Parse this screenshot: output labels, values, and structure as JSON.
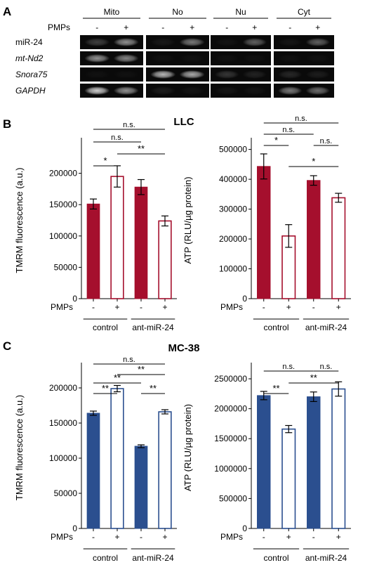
{
  "panel_a": {
    "letter": "A",
    "fractions": [
      "Mito",
      "No",
      "Nu",
      "Cyt"
    ],
    "pmps_label": "PMPs",
    "pmps_signs": [
      "-",
      "+"
    ],
    "rows": [
      {
        "label": "miR-24",
        "italic": false
      },
      {
        "label": "mt-Nd2",
        "italic": true
      },
      {
        "label": "Snora75",
        "italic": true
      },
      {
        "label": "GAPDH",
        "italic": true
      }
    ],
    "band_intensity": [
      [
        [
          0.22,
          0.55
        ],
        [
          0.06,
          0.45
        ],
        [
          0.04,
          0.35
        ],
        [
          0.05,
          0.35
        ]
      ],
      [
        [
          0.55,
          0.5
        ],
        [
          0.03,
          0.03
        ],
        [
          0.03,
          0.03
        ],
        [
          0.03,
          0.03
        ]
      ],
      [
        [
          0.03,
          0.03
        ],
        [
          0.7,
          0.65
        ],
        [
          0.18,
          0.1
        ],
        [
          0.12,
          0.08
        ]
      ],
      [
        [
          0.8,
          0.55
        ],
        [
          0.08,
          0.04
        ],
        [
          0.05,
          0.04
        ],
        [
          0.45,
          0.4
        ]
      ]
    ]
  },
  "panel_b": {
    "letter": "B",
    "title": "LLC"
  },
  "panel_c": {
    "letter": "C",
    "title": "MC-38"
  },
  "colors": {
    "llc": "#a50f2d",
    "mc38": "#2b4f8f",
    "axis": "#000000"
  },
  "chart_data": [
    {
      "type": "bar",
      "panel": "B-left",
      "ylabel": "TMRM fluorescence (a.u.)",
      "ylim": [
        0,
        250000
      ],
      "yticks": [
        0,
        50000,
        100000,
        150000,
        200000
      ],
      "ytick_labels": [
        "0",
        "50000",
        "100000",
        "150000",
        "200000"
      ],
      "pmps_label": "PMPs",
      "pmps": [
        "-",
        "+",
        "-",
        "+"
      ],
      "groups": [
        "control",
        "ant-miR-24"
      ],
      "values": [
        151000,
        195000,
        178000,
        124000
      ],
      "errors": [
        8000,
        17000,
        12000,
        8000
      ],
      "filled": [
        true,
        false,
        true,
        false
      ],
      "significance": [
        {
          "pair": [
            0,
            1
          ],
          "label": "*"
        },
        {
          "pair": [
            1,
            3
          ],
          "label": "**"
        },
        {
          "pair": [
            0,
            2
          ],
          "label": "n.s."
        },
        {
          "pair": [
            0,
            3
          ],
          "label": "n.s."
        }
      ]
    },
    {
      "type": "bar",
      "panel": "B-right",
      "ylabel": "ATP (RLU/µg protein)",
      "ylim": [
        0,
        525000
      ],
      "yticks": [
        0,
        100000,
        200000,
        300000,
        400000,
        500000
      ],
      "ytick_labels": [
        "0",
        "100000",
        "200000",
        "300000",
        "400000",
        "500000"
      ],
      "pmps_label": "PMPs",
      "pmps": [
        "-",
        "+",
        "-",
        "+"
      ],
      "groups": [
        "control",
        "ant-miR-24"
      ],
      "values": [
        443000,
        210000,
        396000,
        338000
      ],
      "errors": [
        42000,
        38000,
        16000,
        15000
      ],
      "filled": [
        true,
        false,
        true,
        false
      ],
      "significance": [
        {
          "pair": [
            0,
            1
          ],
          "label": "*"
        },
        {
          "pair": [
            1,
            3
          ],
          "label": "*"
        },
        {
          "pair": [
            2,
            3
          ],
          "label": "n.s."
        },
        {
          "pair": [
            0,
            2
          ],
          "label": "n.s."
        },
        {
          "pair": [
            0,
            3
          ],
          "label": "n.s."
        }
      ]
    },
    {
      "type": "bar",
      "panel": "C-left",
      "ylabel": "TMRM fluorescence (a.u.)",
      "ylim": [
        0,
        230000
      ],
      "yticks": [
        0,
        50000,
        100000,
        150000,
        200000
      ],
      "ytick_labels": [
        "0",
        "50000",
        "100000",
        "150000",
        "200000"
      ],
      "pmps_label": "PMPs",
      "pmps": [
        "-",
        "+",
        "-",
        "+"
      ],
      "groups": [
        "control",
        "ant-miR-24"
      ],
      "values": [
        164000,
        199000,
        117000,
        166000
      ],
      "errors": [
        3000,
        4500,
        2000,
        3000
      ],
      "filled": [
        true,
        false,
        true,
        false
      ],
      "significance": [
        {
          "pair": [
            0,
            1
          ],
          "label": "**"
        },
        {
          "pair": [
            2,
            3
          ],
          "label": "**"
        },
        {
          "pair": [
            0,
            2
          ],
          "label": "**"
        },
        {
          "pair": [
            1,
            3
          ],
          "label": "**"
        },
        {
          "pair": [
            0,
            3
          ],
          "label": "n.s."
        }
      ]
    },
    {
      "type": "bar",
      "panel": "C-right",
      "ylabel": "ATP (RLU/µg protein)",
      "ylim": [
        0,
        2700000
      ],
      "yticks": [
        0,
        500000,
        1000000,
        1500000,
        2000000,
        2500000
      ],
      "ytick_labels": [
        "0",
        "500000",
        "1000000",
        "1500000",
        "2000000",
        "2500000"
      ],
      "pmps_label": "PMPs",
      "pmps": [
        "-",
        "+",
        "-",
        "+"
      ],
      "groups": [
        "control",
        "ant-miR-24"
      ],
      "values": [
        2220000,
        1660000,
        2200000,
        2330000
      ],
      "errors": [
        70000,
        60000,
        80000,
        120000
      ],
      "filled": [
        true,
        false,
        true,
        false
      ],
      "significance": [
        {
          "pair": [
            0,
            1
          ],
          "label": "**"
        },
        {
          "pair": [
            1,
            3
          ],
          "label": "**"
        },
        {
          "pair": [
            0,
            2
          ],
          "label": "n.s."
        },
        {
          "pair": [
            2,
            3
          ],
          "label": "n.s."
        }
      ]
    }
  ]
}
